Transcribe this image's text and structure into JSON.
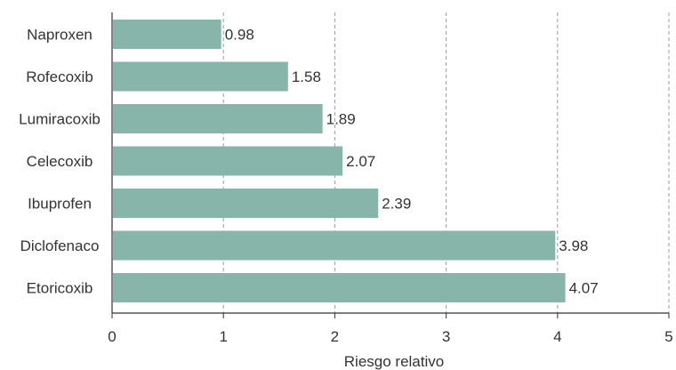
{
  "chart_data": {
    "type": "bar",
    "orientation": "horizontal",
    "categories": [
      "Naproxen",
      "Rofecoxib",
      "Lumiracoxib",
      "Celecoxib",
      "Ibuprofen",
      "Diclofenaco",
      "Etoricoxib"
    ],
    "values": [
      0.98,
      1.58,
      1.89,
      2.07,
      2.39,
      3.98,
      4.07
    ],
    "value_labels": [
      "0.98",
      "1.58",
      "1.89",
      "2.07",
      "2.39",
      "3.98",
      "4.07"
    ],
    "xlabel": "Riesgo relativo",
    "ylabel": "",
    "title": "",
    "xlim": [
      0,
      5
    ],
    "xticks": [
      "0",
      "1",
      "2",
      "3",
      "4",
      "5"
    ],
    "grid": "vertical-dashed",
    "legend": "none",
    "colors": {
      "bar": "#88b5aa",
      "axis": "#333333",
      "grid": "#9a9a9a"
    }
  }
}
